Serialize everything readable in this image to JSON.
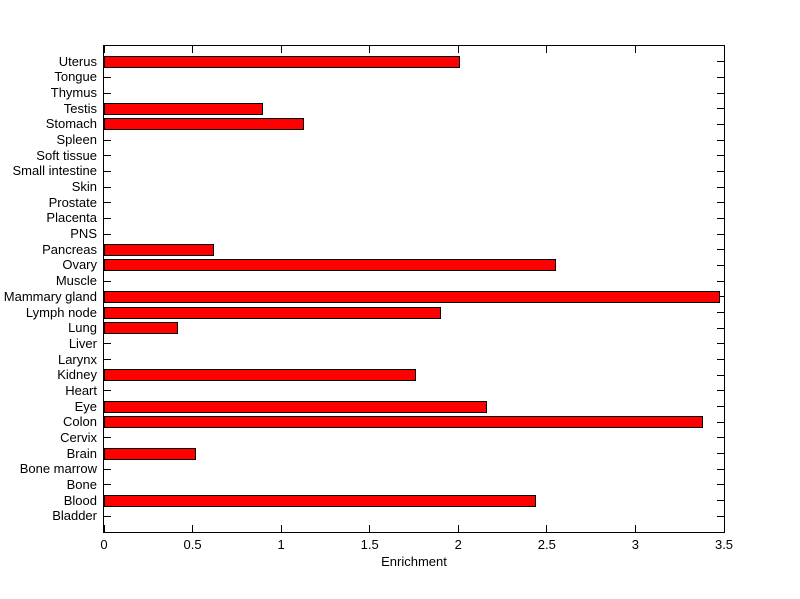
{
  "chart_data": {
    "type": "bar",
    "orientation": "horizontal",
    "order": "top-to-bottom",
    "categories": [
      "Uterus",
      "Tongue",
      "Thymus",
      "Testis",
      "Stomach",
      "Spleen",
      "Soft tissue",
      "Small intestine",
      "Skin",
      "Prostate",
      "Placenta",
      "PNS",
      "Pancreas",
      "Ovary",
      "Muscle",
      "Mammary gland",
      "Lymph node",
      "Lung",
      "Liver",
      "Larynx",
      "Kidney",
      "Heart",
      "Eye",
      "Colon",
      "Cervix",
      "Brain",
      "Bone marrow",
      "Bone",
      "Blood",
      "Bladder"
    ],
    "values": [
      2.01,
      0,
      0,
      0.9,
      1.13,
      0,
      0,
      0,
      0,
      0,
      0,
      0,
      0.62,
      2.55,
      0,
      3.48,
      1.9,
      0.42,
      0,
      0,
      1.76,
      0,
      2.16,
      3.38,
      0,
      0.52,
      0,
      0,
      2.44,
      0
    ],
    "title": "",
    "xlabel": "Enrichment",
    "ylabel": "",
    "xlim": [
      0,
      3.5
    ],
    "x_tick_values": [
      0,
      0.5,
      1,
      1.5,
      2,
      2.5,
      3,
      3.5
    ],
    "x_tick_labels": [
      "0",
      "0.5",
      "1",
      "1.5",
      "2",
      "2.5",
      "3",
      "3.5"
    ],
    "grid": false,
    "legend": "none",
    "colors": {
      "bar_fill": "#FF0000",
      "bar_edge": "#000000",
      "axis": "#000000",
      "background": "#FFFFFF"
    }
  }
}
